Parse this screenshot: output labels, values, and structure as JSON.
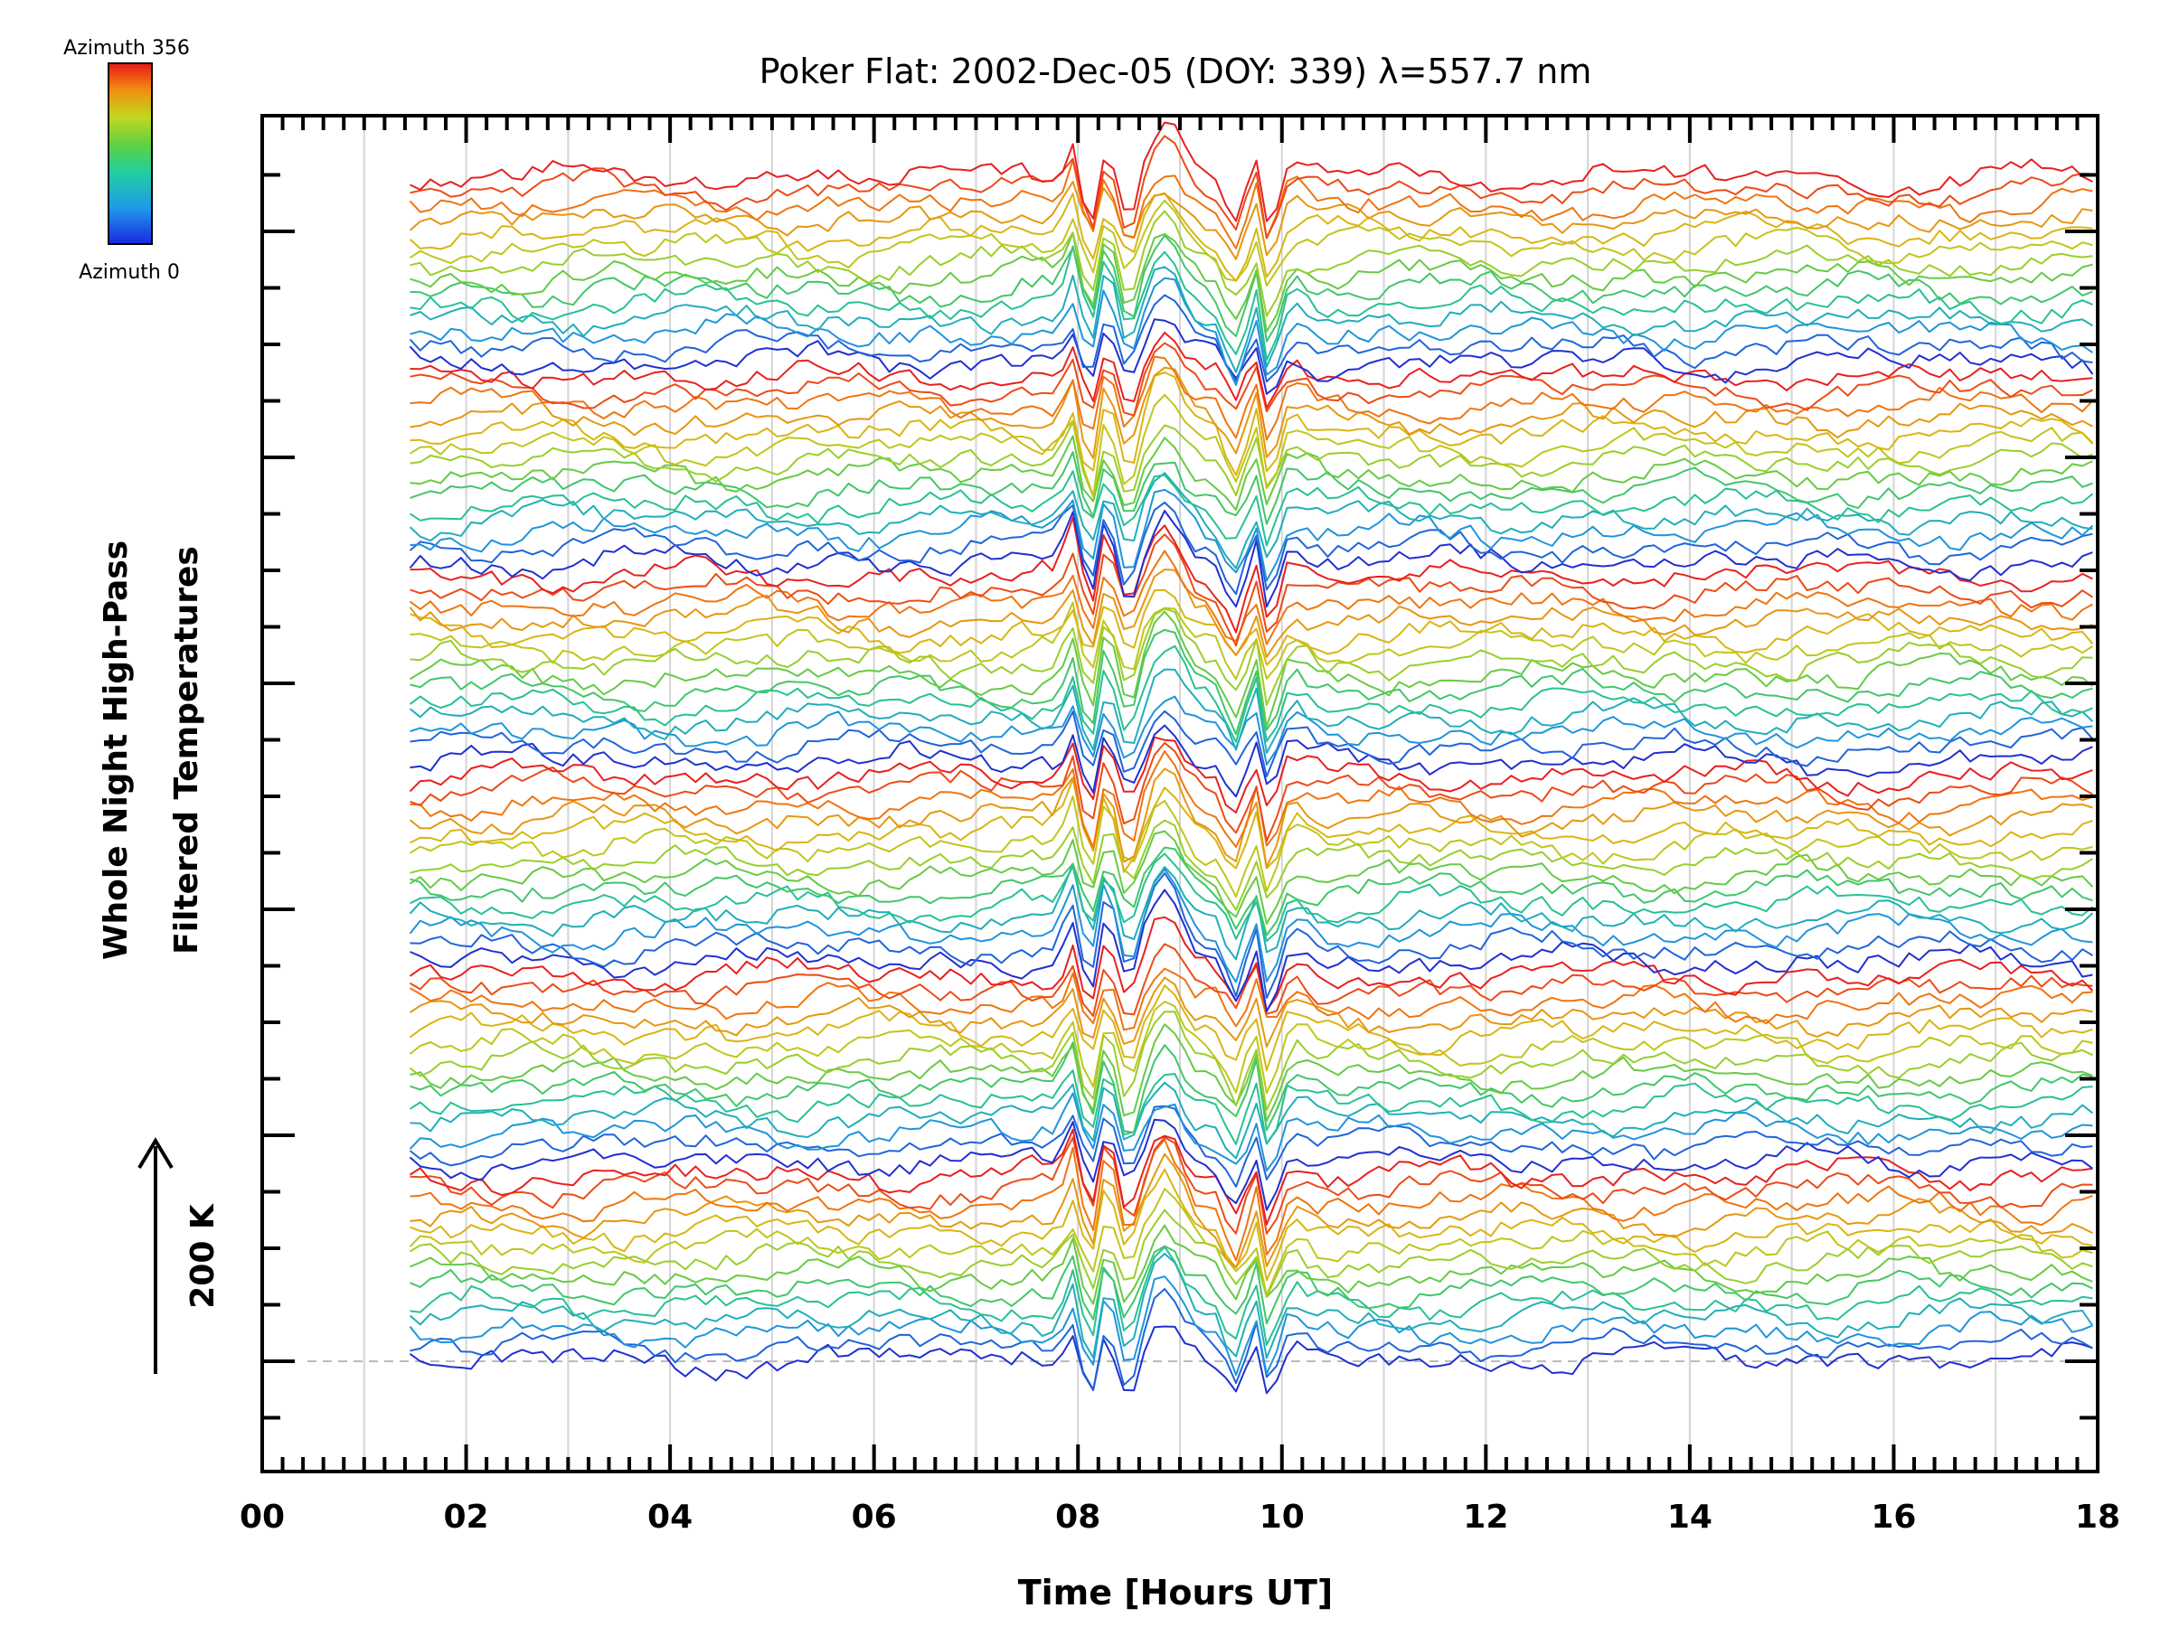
{
  "chart_data": {
    "type": "line",
    "title": "Poker Flat: 2002-Dec-05 (DOY: 339) λ=557.7 nm",
    "xlabel": "Time [Hours UT]",
    "ylabel_line1": "Whole Night High-Pass",
    "ylabel_line2": "Filtered Temperatures",
    "scale_label": "200 K",
    "x_ticks": [
      "00",
      "02",
      "04",
      "06",
      "08",
      "10",
      "12",
      "14",
      "16",
      "18"
    ],
    "x_tick_values": [
      0,
      2,
      4,
      6,
      8,
      10,
      12,
      14,
      16,
      18
    ],
    "xlim": [
      0,
      18
    ],
    "data_start_hour": 1.45,
    "data_end_hour": 18,
    "sample_step_hours": 0.1,
    "trace_count": 84,
    "grid": "vertical lines every 1 hour",
    "baseline": "dashed horizontal line at zero offset",
    "colorbar": {
      "top_label": "Azimuth 356",
      "bottom_label": "Azimuth 0",
      "min": 0,
      "max": 356,
      "colormap": "rainbow (blue to red)"
    },
    "wave_event": {
      "center_hour": 8.85,
      "extent_hours": [
        7.8,
        10.0
      ],
      "description_note": "large coherent oscillations across all azimuths"
    }
  },
  "colors": {
    "axis": "#000000",
    "grid": "#d0d0d0",
    "baseline": "#bbbbbb",
    "cmap_stops": [
      "#2030d0",
      "#2090e0",
      "#20c0a0",
      "#50c850",
      "#b0d020",
      "#e0b010",
      "#f07010",
      "#e82020"
    ]
  }
}
